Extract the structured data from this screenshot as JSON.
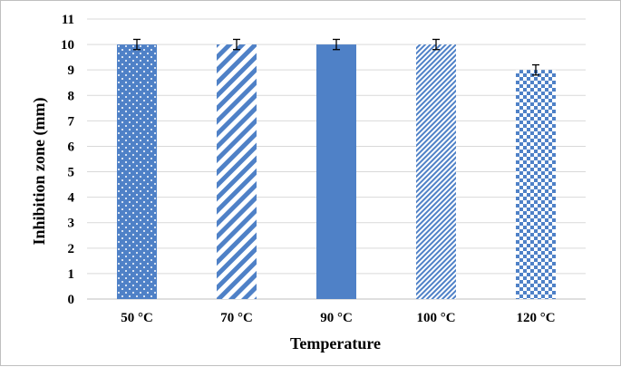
{
  "chart_data": {
    "type": "bar",
    "title": "",
    "xlabel": "Temperature",
    "ylabel": "Inhibition zone (mm)",
    "categories": [
      "50 °C",
      "70 °C",
      "90 °C",
      "100 °C",
      "120 °C"
    ],
    "values": [
      10,
      10,
      10,
      10,
      9
    ],
    "error": [
      0.2,
      0.2,
      0.2,
      0.2,
      0.2
    ],
    "patterns": [
      "dots",
      "wide-diagonal",
      "solid",
      "narrow-diagonal",
      "checker"
    ],
    "ylim": [
      0,
      11
    ],
    "yticks": [
      "0",
      "1",
      "2",
      "3",
      "4",
      "5",
      "6",
      "7",
      "8",
      "9",
      "10",
      "11"
    ],
    "grid": true,
    "legend": "none",
    "bar_color": "#4f81c7",
    "grid_color": "#d9d9d9"
  }
}
